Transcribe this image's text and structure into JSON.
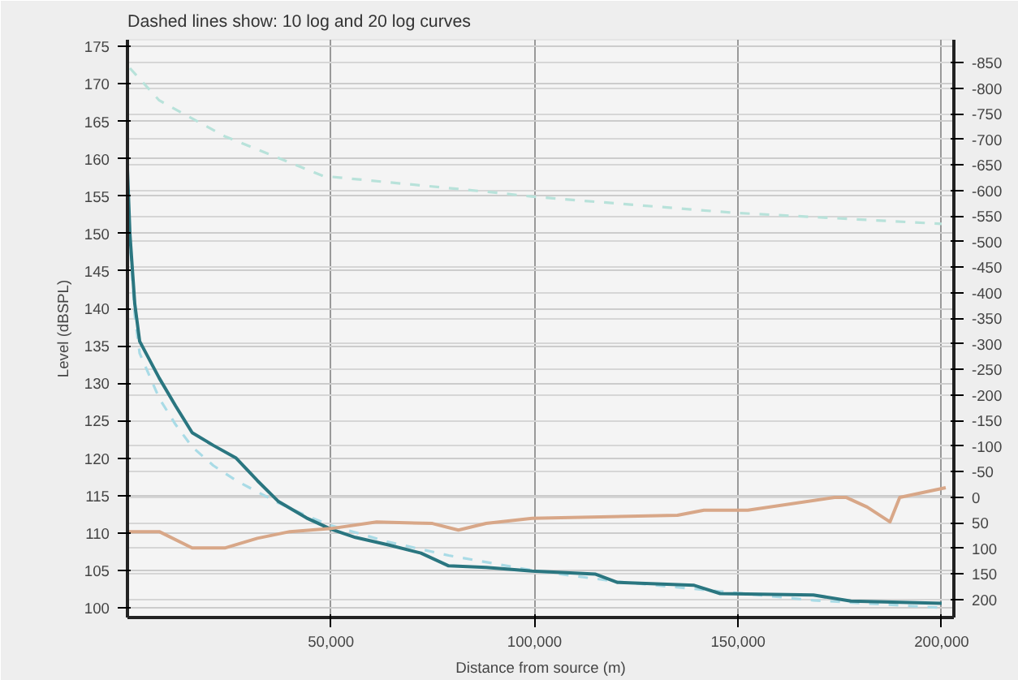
{
  "chart_data": {
    "type": "line",
    "title": "Dashed lines show: 10 log and 20 log curves",
    "xlabel": "Distance from source (m)",
    "ylabel": "Level (dBSPL)",
    "xlim": [
      0,
      203000
    ],
    "xticks": [
      {
        "value": 50000,
        "label": "50,000"
      },
      {
        "value": 100000,
        "label": "100,000"
      },
      {
        "value": 150000,
        "label": "150,000"
      },
      {
        "value": 200000,
        "label": "200,000"
      }
    ],
    "ylim": [
      98.7,
      175.9
    ],
    "yticks": [
      100,
      105,
      110,
      115,
      120,
      125,
      130,
      135,
      140,
      145,
      150,
      155,
      160,
      165,
      170,
      175
    ],
    "y2lim": [
      235,
      -895
    ],
    "y2ticks": [
      -850,
      -800,
      -750,
      -700,
      -650,
      -600,
      -550,
      -500,
      -450,
      -400,
      -350,
      -300,
      -250,
      -200,
      -150,
      -100,
      -50,
      0,
      50,
      100,
      150,
      200
    ],
    "grid": true,
    "marker": "none",
    "series": [
      {
        "color": "#b8e2da",
        "line_style": "dashed",
        "x": [
          600,
          7800,
          23900,
          48000,
          88100,
          100200,
          148400,
          200000
        ],
        "values": [
          172.1,
          167.8,
          163,
          157.7,
          155.6,
          154.9,
          152.8,
          151.3
        ]
      },
      {
        "color": "#a9dbe6",
        "line_style": "dashed",
        "x": [
          0,
          600,
          1800,
          3000,
          7800,
          11800,
          15900,
          21100,
          26700,
          31900,
          37100,
          44000,
          50000,
          64100,
          78900,
          99400,
          120300,
          145600,
          168500,
          200000
        ],
        "values": [
          158,
          149,
          139,
          134,
          128,
          124.5,
          121.5,
          119,
          117,
          115.5,
          114,
          112.3,
          111,
          108.8,
          107,
          105,
          103.5,
          102.2,
          101,
          100
        ]
      },
      {
        "color": "#2a7680",
        "line_style": "solid",
        "x": [
          0,
          600,
          1800,
          3000,
          7800,
          11800,
          15900,
          21100,
          26700,
          31900,
          37100,
          44000,
          50000,
          56000,
          64100,
          72100,
          78900,
          88100,
          99400,
          115000,
          120300,
          139200,
          145600,
          168500,
          177700,
          200000
        ],
        "values": [
          158.6,
          150,
          140.6,
          135.6,
          130.7,
          127,
          123.4,
          121.7,
          120,
          117,
          114.2,
          112,
          110.5,
          109.4,
          108.4,
          107.3,
          105.6,
          105.4,
          104.9,
          104.5,
          103.4,
          103,
          101.9,
          101.7,
          100.9,
          100.6
        ]
      },
      {
        "color": "#d8a788",
        "line_style": "solid",
        "axis": "y2",
        "x": [
          0,
          7800,
          15900,
          23900,
          31900,
          39900,
          50000,
          61200,
          74900,
          81300,
          88100,
          99400,
          135100,
          141600,
          152400,
          173700,
          176500,
          181700,
          187300,
          189700,
          201000
        ],
        "values": [
          67,
          67,
          99,
          99,
          80,
          67,
          61,
          48,
          51,
          64,
          51,
          41,
          35,
          25,
          25,
          0,
          0,
          19,
          48,
          0,
          -19
        ]
      }
    ]
  }
}
